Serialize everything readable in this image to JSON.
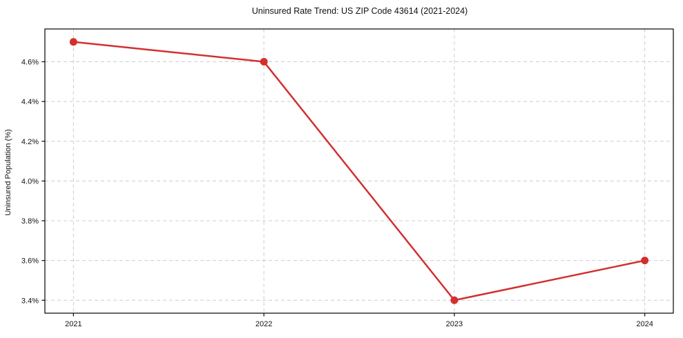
{
  "figure": {
    "background": "#ffffff"
  },
  "chart_data": {
    "type": "line",
    "title": "Uninsured Rate Trend: US ZIP Code 43614 (2021-2024)",
    "xlabel": "",
    "ylabel": "Uninsured Population (%)",
    "x": [
      2021,
      2022,
      2023,
      2024
    ],
    "x_tick_labels": [
      "2021",
      "2022",
      "2023",
      "2024"
    ],
    "series": [
      {
        "name": "uninsured-rate",
        "values": [
          4.7,
          4.6,
          3.4,
          3.6
        ],
        "color": "#d32f2f",
        "line_width": 2.5,
        "marker": "circle",
        "marker_radius": 5.5
      }
    ],
    "y_ticks": [
      3.4,
      3.6,
      3.8,
      4.0,
      4.2,
      4.4,
      4.6
    ],
    "y_tick_labels": [
      "3.4%",
      "3.6%",
      "3.8%",
      "4.0%",
      "4.2%",
      "4.4%",
      "4.6%"
    ],
    "xlim": [
      2020.85,
      2024.15
    ],
    "ylim": [
      3.335,
      4.765
    ],
    "grid": true,
    "grid_color": "#cccccc",
    "grid_dash": "5,4",
    "legend_position": "none",
    "spine_color": "#000000",
    "tick_color": "#000000"
  }
}
